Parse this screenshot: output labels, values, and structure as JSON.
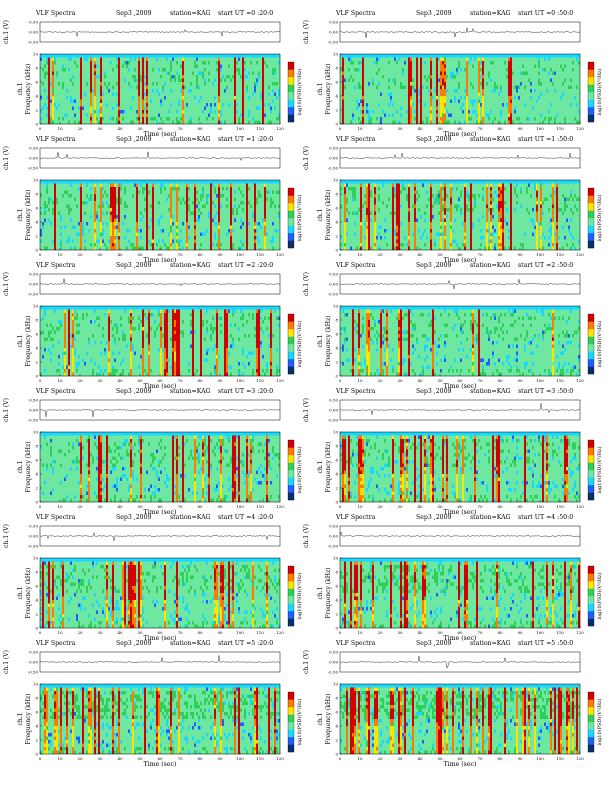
{
  "chart_data": {
    "type": "heatmap",
    "header_prefix": "VLF Spectra",
    "date": "Sep3 ,2009",
    "station_label": "station=KAG",
    "start_prefix": "start  UT",
    "waveform_ylabel": "ch.1 (V)",
    "waveform_ticks": [
      "0.50",
      "0.00",
      "-0.50"
    ],
    "freq_ylabel_line1": "ch.1",
    "freq_ylabel_line2": "Frequency (kHz)",
    "freq_ticks": [
      "0",
      "2",
      "4",
      "6",
      "8",
      "10"
    ],
    "freq_range_khz": [
      0,
      10
    ],
    "waveform_range_v": [
      -0.5,
      0.5
    ],
    "xlabel": "Time (sec)",
    "time_ticks": [
      "0",
      "10",
      "20",
      "30",
      "40",
      "50",
      "60",
      "70",
      "80",
      "90",
      "100",
      "110",
      "120"
    ],
    "time_range_sec": [
      0,
      120
    ],
    "colorbar_label": "log10(PSD)(V²/Hz)",
    "colormap": [
      "#08306b",
      "#1f5fff",
      "#19d7ff",
      "#6ee8a0",
      "#2fcf5a",
      "#ffe400",
      "#ff7a00",
      "#d20000"
    ],
    "panels": [
      {
        "start_ut": "=0 :20:0",
        "activity": 0.55
      },
      {
        "start_ut": "=0 :50:0",
        "activity": 0.45
      },
      {
        "start_ut": "=1 :20:0",
        "activity": 0.6
      },
      {
        "start_ut": "=1 :50:0",
        "activity": 0.6
      },
      {
        "start_ut": "=2 :20:0",
        "activity": 0.55
      },
      {
        "start_ut": "=2 :50:0",
        "activity": 0.55
      },
      {
        "start_ut": "=3 :20:0",
        "activity": 0.6
      },
      {
        "start_ut": "=3 :50:0",
        "activity": 0.6
      },
      {
        "start_ut": "=4 :20:0",
        "activity": 0.65
      },
      {
        "start_ut": "=4 :50:0",
        "activity": 0.7
      },
      {
        "start_ut": "=5 :20:0",
        "activity": 0.8
      },
      {
        "start_ut": "=5 :50:0",
        "activity": 0.85
      }
    ]
  }
}
